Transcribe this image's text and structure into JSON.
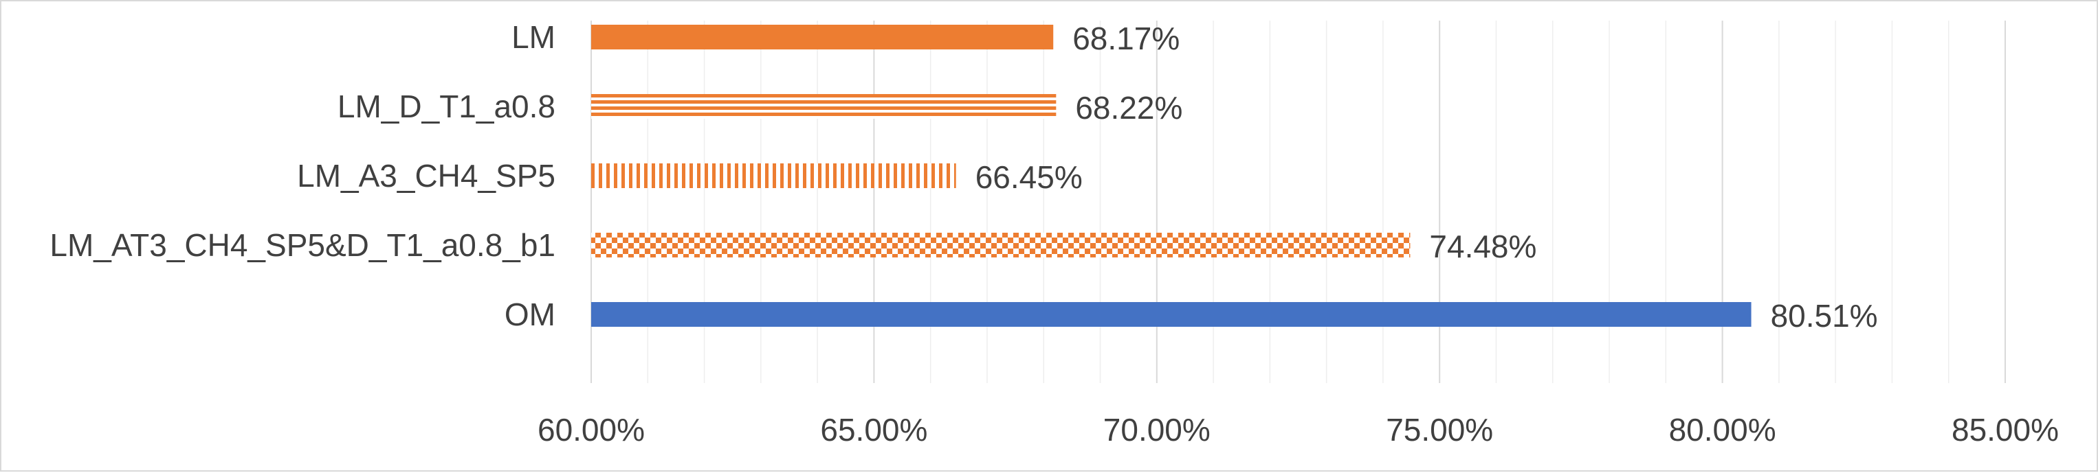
{
  "chart_data": {
    "type": "bar",
    "orientation": "horizontal",
    "title": "",
    "xlabel": "",
    "ylabel": "",
    "xlim": [
      0.6,
      0.85
    ],
    "x_ticks": [
      0.6,
      0.65,
      0.7,
      0.75,
      0.8,
      0.85
    ],
    "x_tick_labels": [
      "60.00%",
      "65.00%",
      "70.00%",
      "75.00%",
      "80.00%",
      "85.00%"
    ],
    "grid": true,
    "minor_grid": true,
    "legend": "none",
    "categories": [
      "LM",
      "LM_D_T1_a0.8",
      "LM_A3_CH4_SP5",
      "LM_AT3_CH4_SP5&D_T1_a0.8_b1",
      "OM"
    ],
    "values": [
      0.6817,
      0.6822,
      0.6645,
      0.7448,
      0.8051
    ],
    "data_labels": [
      "68.17%",
      "68.22%",
      "66.45%",
      "74.48%",
      "80.51%"
    ],
    "fills": [
      "solid",
      "horizontal-stripes",
      "vertical-stripes",
      "checker",
      "solid"
    ],
    "colors": [
      "#ed7d31",
      "#ed7d31",
      "#ed7d31",
      "#ed7d31",
      "#4472c4"
    ]
  }
}
